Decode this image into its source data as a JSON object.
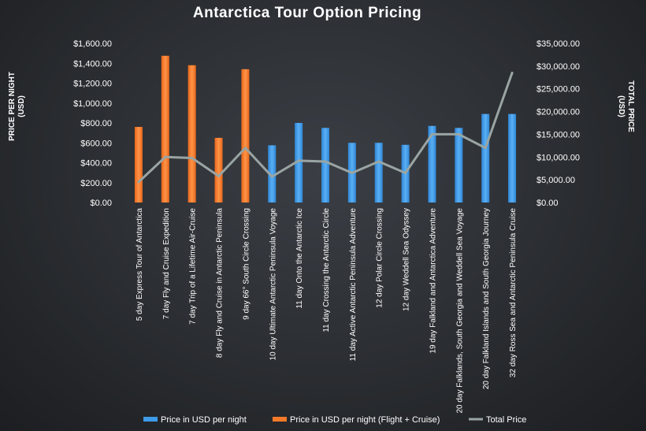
{
  "chart_data": {
    "type": "bar",
    "title": "Antarctica Tour Option Pricing",
    "y_left_label": "PRICE PER NIGHT (USD)",
    "y_right_label": "TOTAL PRICE (USD)",
    "y_left_lim": [
      0,
      1600
    ],
    "y_right_lim": [
      0,
      35000
    ],
    "y_left_ticks": [
      "$0.00",
      "$200.00",
      "$400.00",
      "$600.00",
      "$800.00",
      "$1,000.00",
      "$1,200.00",
      "$1,400.00",
      "$1,600.00"
    ],
    "y_right_ticks": [
      "$0.00",
      "$5,000.00",
      "$10,000.00",
      "$15,000.00",
      "$20,000.00",
      "$25,000.00",
      "$30,000.00",
      "$35,000.00"
    ],
    "categories": [
      "5 day Express Tour of Antarctica",
      "7 day Fly and Cruise Expedition",
      "7 day Trip of a Lifetime Air-Cruise",
      "8 day Fly and Cruise in Antarctic Peninsula",
      "9 day 66° South Circle Crossing",
      "10 day Ultimate Antarctic Peninsula Voyage",
      "11 day Onto the Antarctic Ice",
      "11 day Crossing the Antarctic Circle",
      "11 day Active Antarctic Peninsula Adventure",
      "12 day Polar Circle Crossing",
      "12 day Weddell Sea Odyssey",
      "19 day Falkland and Antarctica Adventure",
      "20 day Falklands, South Georgia and Weddell Sea Voyage",
      "20 day Falkland Islands and South Georgia Journey",
      "32 day Ross Sea and Antarctic Peninsula Cruise"
    ],
    "series": [
      {
        "name": "Price in USD per night",
        "type": "bar",
        "axis": "left",
        "color": "#3d9be9",
        "values": [
          null,
          null,
          null,
          null,
          null,
          575,
          800,
          750,
          600,
          600,
          580,
          770,
          750,
          890,
          890
        ]
      },
      {
        "name": "Price in USD per night (Flight + Cruise)",
        "type": "bar",
        "axis": "left",
        "color": "#f47a2a",
        "values": [
          760,
          1475,
          1380,
          650,
          1340,
          null,
          null,
          null,
          null,
          null,
          null,
          null,
          null,
          null,
          null
        ]
      },
      {
        "name": "Total Price",
        "type": "line",
        "axis": "right",
        "color": "#9aa5a3",
        "values": [
          4500,
          10000,
          9800,
          5800,
          12000,
          5700,
          9200,
          9000,
          6500,
          9000,
          6500,
          15000,
          15000,
          12000,
          28500
        ]
      }
    ],
    "legend_position": "bottom",
    "grid": false
  }
}
